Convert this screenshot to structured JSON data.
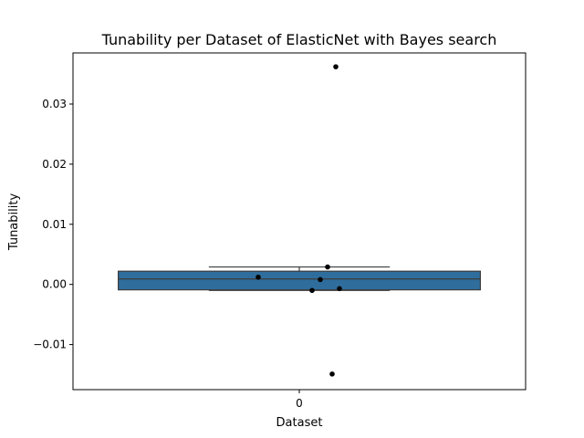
{
  "chart_data": {
    "type": "box",
    "title": "Tunability per Dataset of ElasticNet with Bayes search",
    "xlabel": "Dataset",
    "ylabel": "Tunability",
    "categories": [
      "0"
    ],
    "ylim": [
      -0.0175,
      0.0385
    ],
    "yticks": [
      -0.01,
      0.0,
      0.01,
      0.02,
      0.03
    ],
    "ytick_labels": [
      "−0.01",
      "0.00",
      "0.01",
      "0.02",
      "0.03"
    ],
    "grid": false,
    "box": {
      "category": "0",
      "color": "#2f6d9d",
      "whisker_low": -0.001,
      "q1": -0.0009,
      "median": 0.0009,
      "q3": 0.0022,
      "whisker_high": 0.0029
    },
    "points": {
      "color": "#000000",
      "values": [
        0.0362,
        0.0029,
        0.0012,
        0.0008,
        -0.001,
        -0.0007,
        -0.0149
      ]
    }
  }
}
